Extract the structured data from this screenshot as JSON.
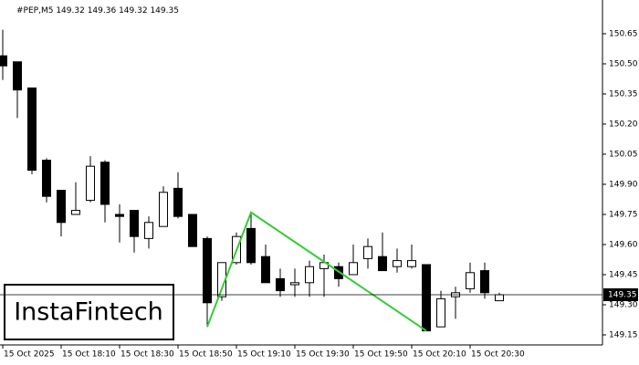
{
  "chart_data": {
    "type": "candlestick",
    "symbol": "#PEP,M5",
    "watermark": "InstaFintech",
    "categories": [
      "15 Oct 2025",
      null,
      null,
      null,
      "15 Oct 18:10",
      null,
      null,
      null,
      "15 Oct 18:30",
      null,
      null,
      null,
      "15 Oct 18:50",
      null,
      null,
      null,
      "15 Oct 19:10",
      null,
      null,
      null,
      "15 Oct 19:30",
      null,
      null,
      null,
      "15 Oct 19:50",
      null,
      null,
      null,
      "15 Oct 20:10",
      null,
      null,
      null,
      "15 Oct 20:30",
      null,
      null
    ],
    "open": [
      150.54,
      150.51,
      150.38,
      150.02,
      149.87,
      149.75,
      149.82,
      150.01,
      149.75,
      149.77,
      149.63,
      149.69,
      149.88,
      149.75,
      149.63,
      149.34,
      149.51,
      149.68,
      149.54,
      149.43,
      149.4,
      149.41,
      149.48,
      149.49,
      149.45,
      149.53,
      149.54,
      149.49,
      149.49,
      149.5,
      149.19,
      149.34,
      149.38,
      149.47,
      149.32
    ],
    "high": [
      150.67,
      150.51,
      150.38,
      150.03,
      149.87,
      149.91,
      150.04,
      150.02,
      149.8,
      149.77,
      149.74,
      149.89,
      149.96,
      149.75,
      149.64,
      149.51,
      149.66,
      149.76,
      149.6,
      149.48,
      149.48,
      149.52,
      149.55,
      149.51,
      149.6,
      149.63,
      149.66,
      149.58,
      149.6,
      149.5,
      149.37,
      149.39,
      149.51,
      149.51,
      149.36
    ],
    "low": [
      150.42,
      150.23,
      149.95,
      149.81,
      149.64,
      149.75,
      149.81,
      149.71,
      149.61,
      149.56,
      149.58,
      149.69,
      149.73,
      149.59,
      149.19,
      149.32,
      149.5,
      149.5,
      149.41,
      149.34,
      149.34,
      149.34,
      149.34,
      149.39,
      149.45,
      149.48,
      149.47,
      149.46,
      149.48,
      149.17,
      149.19,
      149.23,
      149.36,
      149.33,
      149.32
    ],
    "close": [
      150.49,
      150.37,
      149.97,
      149.84,
      149.71,
      149.77,
      149.99,
      149.8,
      149.74,
      149.64,
      149.71,
      149.86,
      149.74,
      149.59,
      149.31,
      149.51,
      149.64,
      149.51,
      149.41,
      149.37,
      149.41,
      149.49,
      149.51,
      149.43,
      149.51,
      149.59,
      149.47,
      149.52,
      149.52,
      149.17,
      149.33,
      149.36,
      149.46,
      149.36,
      149.35
    ],
    "up_color": "#ffffff",
    "down_color": "#000000",
    "pattern": {
      "color": "#33cc33",
      "points": [
        {
          "index": 14,
          "value": 149.19
        },
        {
          "index": 17,
          "value": 149.76
        },
        {
          "index": 29,
          "value": 149.17
        }
      ]
    },
    "ylim": [
      149.1,
      150.818
    ],
    "yticks": [
      {
        "value": 149.15,
        "label": "149.15"
      },
      {
        "value": 149.3,
        "label": "149.30"
      },
      149.45,
      {
        "value": 149.6,
        "label": "149.60"
      },
      149.75,
      {
        "value": 149.9,
        "label": "149.90"
      },
      150.05,
      {
        "value": 150.2,
        "label": "150.20"
      },
      150.35,
      {
        "value": 150.5,
        "label": "150.50"
      },
      150.65
    ]
  }
}
